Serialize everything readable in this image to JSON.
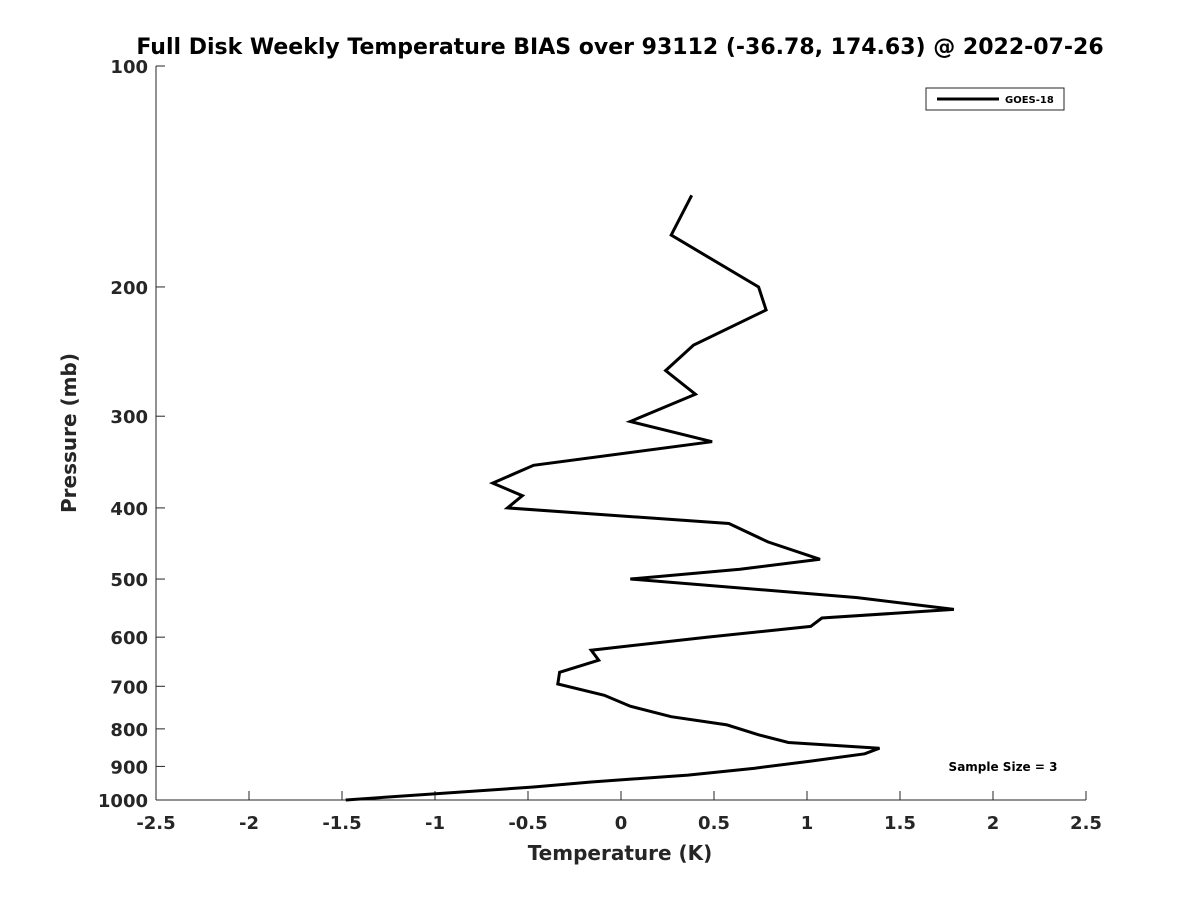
{
  "chart_data": {
    "type": "line",
    "title": "Full Disk Weekly Temperature BIAS over 93112 (-36.78, 174.63) @ 2022-07-26",
    "xlabel": "Temperature (K)",
    "ylabel": "Pressure (mb)",
    "xlim": [
      -2.5,
      2.5
    ],
    "ylim": [
      100,
      1000
    ],
    "y_scale": "log",
    "y_reversed": true,
    "xticks": [
      -2.5,
      -2,
      -1.5,
      -1,
      -0.5,
      0,
      0.5,
      1,
      1.5,
      2,
      2.5
    ],
    "xtick_labels": [
      "-2.5",
      "-2",
      "-1.5",
      "-1",
      "-0.5",
      "0",
      "0.5",
      "1",
      "1.5",
      "2",
      "2.5"
    ],
    "yticks": [
      100,
      200,
      300,
      400,
      500,
      600,
      700,
      800,
      900,
      1000
    ],
    "ytick_labels": [
      "100",
      "200",
      "300",
      "400",
      "500",
      "600",
      "700",
      "800",
      "900",
      "1000"
    ],
    "grid": false,
    "legend_position": "top-right",
    "annotation": "Sample Size = 3",
    "series": [
      {
        "name": "GOES-18",
        "color": "#000000",
        "points": [
          [
            0.38,
            150
          ],
          [
            0.27,
            170
          ],
          [
            0.74,
            200
          ],
          [
            0.78,
            215
          ],
          [
            0.39,
            240
          ],
          [
            0.24,
            260
          ],
          [
            0.4,
            280
          ],
          [
            0.05,
            305
          ],
          [
            0.49,
            325
          ],
          [
            -0.47,
            350
          ],
          [
            -0.69,
            370
          ],
          [
            -0.53,
            385
          ],
          [
            -0.61,
            400
          ],
          [
            0.58,
            420
          ],
          [
            0.79,
            445
          ],
          [
            1.07,
            470
          ],
          [
            0.64,
            485
          ],
          [
            0.05,
            500
          ],
          [
            1.27,
            530
          ],
          [
            1.79,
            550
          ],
          [
            1.08,
            565
          ],
          [
            1.02,
            580
          ],
          [
            0.46,
            600
          ],
          [
            -0.16,
            625
          ],
          [
            -0.12,
            645
          ],
          [
            -0.33,
            670
          ],
          [
            -0.34,
            695
          ],
          [
            -0.09,
            720
          ],
          [
            0.05,
            745
          ],
          [
            0.27,
            770
          ],
          [
            0.57,
            790
          ],
          [
            0.74,
            815
          ],
          [
            0.9,
            835
          ],
          [
            1.39,
            850
          ],
          [
            1.31,
            865
          ],
          [
            1.02,
            885
          ],
          [
            0.72,
            905
          ],
          [
            0.36,
            925
          ],
          [
            -0.16,
            945
          ],
          [
            -0.47,
            960
          ],
          [
            -1.48,
            1000
          ]
        ]
      }
    ]
  }
}
